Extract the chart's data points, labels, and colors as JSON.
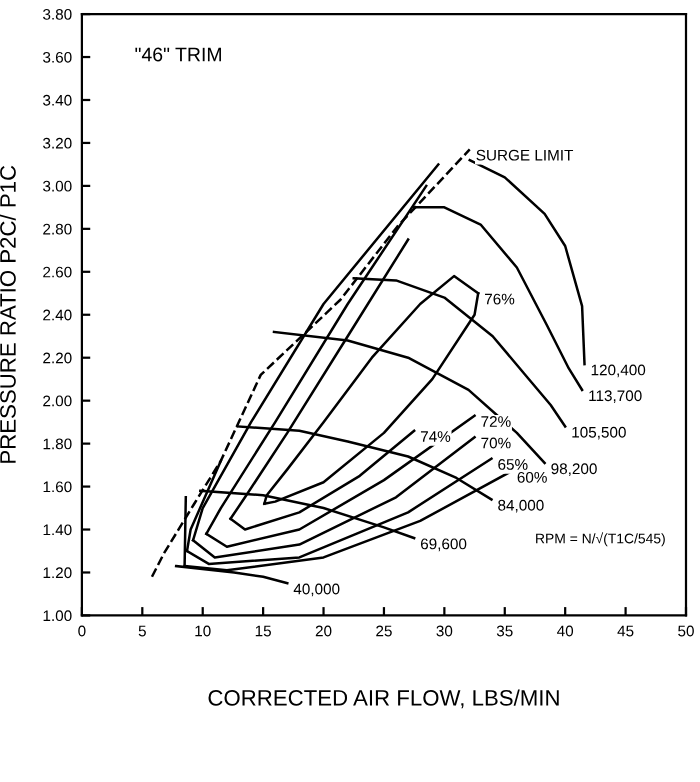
{
  "chart_data": {
    "type": "line",
    "title": "\"46\" TRIM",
    "xlabel": "CORRECTED AIR FLOW, LBS/MIN",
    "ylabel": "PRESSURE RATIO P2C/ P1C",
    "xlim": [
      0,
      50
    ],
    "ylim": [
      1.0,
      3.8
    ],
    "xticks": [
      0,
      5,
      10,
      15,
      20,
      25,
      30,
      35,
      40,
      45,
      50
    ],
    "yticks": [
      {
        "value": 1.0,
        "label": "1.00"
      },
      {
        "value": 1.2,
        "label": "1.20"
      },
      {
        "value": 1.4,
        "label": "1.40"
      },
      {
        "value": 1.6,
        "label": "1.60"
      },
      {
        "value": 1.8,
        "label": "1.80"
      },
      {
        "value": 2.0,
        "label": "2.00"
      },
      {
        "value": 2.2,
        "label": "2.20"
      },
      {
        "value": 2.4,
        "label": "2.40"
      },
      {
        "value": 2.6,
        "label": "2.60"
      },
      {
        "value": 2.8,
        "label": "2.80"
      },
      {
        "value": 3.0,
        "label": "3.00"
      },
      {
        "value": 3.2,
        "label": "3.20"
      },
      {
        "value": 3.4,
        "label": "3.40"
      },
      {
        "value": 3.6,
        "label": "3.60"
      },
      {
        "value": 3.8,
        "label": "3.80"
      }
    ],
    "grid": false,
    "legend": false,
    "marker": "none",
    "series": [
      {
        "name": "SURGE LIMIT",
        "color": "#000000",
        "line_style": "dashed",
        "x": [
          5.8,
          6.8,
          9.3,
          11.5,
          14.8,
          21.4,
          26.1,
          32.1
        ],
        "values": [
          1.18,
          1.29,
          1.52,
          1.72,
          2.12,
          2.47,
          2.81,
          3.17
        ]
      },
      {
        "name": "40,000",
        "color": "#000000",
        "line_style": "solid",
        "x": [
          7.8,
          12.6,
          15,
          17
        ],
        "values": [
          1.23,
          1.2,
          1.18,
          1.15
        ]
      },
      {
        "name": "69,600",
        "color": "#000000",
        "line_style": "solid",
        "x": [
          9.8,
          15,
          20,
          25,
          27.5
        ],
        "values": [
          1.58,
          1.56,
          1.5,
          1.41,
          1.36
        ]
      },
      {
        "name": "84,000",
        "color": "#000000",
        "line_style": "solid",
        "x": [
          12.9,
          18,
          22,
          27,
          31,
          33.9
        ],
        "values": [
          1.88,
          1.86,
          1.81,
          1.74,
          1.64,
          1.54
        ]
      },
      {
        "name": "98,200",
        "color": "#000000",
        "line_style": "solid",
        "x": [
          15.9,
          22,
          27,
          32,
          36,
          38.3
        ],
        "values": [
          2.32,
          2.28,
          2.2,
          2.05,
          1.85,
          1.71
        ]
      },
      {
        "name": "105,500",
        "color": "#000000",
        "line_style": "solid",
        "x": [
          22.5,
          26,
          30,
          34,
          37,
          38.8,
          40
        ],
        "values": [
          2.57,
          2.56,
          2.48,
          2.3,
          2.1,
          1.98,
          1.88
        ]
      },
      {
        "name": "113,700",
        "color": "#000000",
        "line_style": "solid",
        "x": [
          27.5,
          30,
          33,
          36,
          38.5,
          40.3,
          41.4
        ],
        "values": [
          2.9,
          2.9,
          2.82,
          2.62,
          2.35,
          2.15,
          2.05
        ]
      },
      {
        "name": "120,400",
        "color": "#000000",
        "line_style": "solid",
        "x": [
          32.1,
          35,
          38.3,
          40,
          41.4,
          41.6
        ],
        "values": [
          3.12,
          3.04,
          2.87,
          2.72,
          2.44,
          2.17
        ]
      },
      {
        "color": "#000000",
        "line_style": "solid",
        "x": [
          15.1,
          15.3,
          17,
          20,
          24,
          28,
          30.8,
          32.8
        ],
        "values": [
          1.52,
          1.56,
          1.68,
          1.9,
          2.2,
          2.45,
          2.58,
          2.5
        ]
      },
      {
        "name": "76%",
        "color": "#000000",
        "line_style": "solid",
        "x": [
          15.1,
          16,
          20,
          25,
          29,
          32.5,
          32.8
        ],
        "values": [
          1.52,
          1.53,
          1.62,
          1.85,
          2.1,
          2.4,
          2.5
        ]
      },
      {
        "color": "#000000",
        "line_style": "solid",
        "x": [
          12.3,
          13.5,
          17,
          22,
          27
        ],
        "values": [
          1.45,
          1.55,
          1.85,
          2.3,
          2.75
        ]
      },
      {
        "name": "74%",
        "color": "#000000",
        "line_style": "solid",
        "x": [
          12.3,
          13.5,
          18,
          23,
          27.5
        ],
        "values": [
          1.45,
          1.4,
          1.48,
          1.65,
          1.86
        ]
      },
      {
        "color": "#000000",
        "line_style": "solid",
        "x": [
          10.3,
          11.5,
          16,
          22,
          28.5
        ],
        "values": [
          1.38,
          1.5,
          1.9,
          2.45,
          3.0
        ]
      },
      {
        "name": "72%",
        "color": "#000000",
        "line_style": "solid",
        "x": [
          10.3,
          12,
          18,
          25,
          32.5
        ],
        "values": [
          1.38,
          1.32,
          1.4,
          1.63,
          1.93
        ]
      },
      {
        "color": "#000000",
        "line_style": "solid",
        "x": [
          9.2,
          10,
          14,
          20,
          29.5
        ],
        "values": [
          1.35,
          1.5,
          1.9,
          2.45,
          3.1
        ]
      },
      {
        "name": "70%",
        "color": "#000000",
        "line_style": "solid",
        "x": [
          9.2,
          11,
          18,
          26,
          32.5
        ],
        "values": [
          1.35,
          1.27,
          1.33,
          1.55,
          1.83
        ]
      },
      {
        "color": "#000000",
        "line_style": "solid",
        "x": [
          8.7,
          9,
          11.5
        ],
        "values": [
          1.3,
          1.4,
          1.72
        ]
      },
      {
        "name": "65%",
        "color": "#000000",
        "line_style": "solid",
        "x": [
          8.7,
          10.5,
          18,
          27,
          33.9
        ],
        "values": [
          1.3,
          1.24,
          1.27,
          1.48,
          1.73
        ]
      },
      {
        "color": "#000000",
        "line_style": "solid",
        "x": [
          8.5,
          8.6
        ],
        "values": [
          1.23,
          1.55
        ]
      },
      {
        "name": "60%",
        "color": "#000000",
        "line_style": "solid",
        "x": [
          8.5,
          12,
          20,
          28,
          35.5
        ],
        "values": [
          1.23,
          1.21,
          1.27,
          1.44,
          1.67
        ]
      }
    ],
    "annotations": [
      "RPM = N/√(T1C/545)"
    ]
  }
}
